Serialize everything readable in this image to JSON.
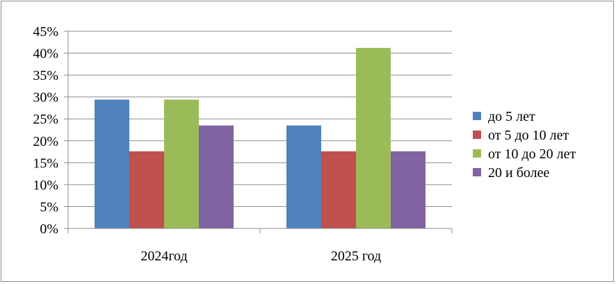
{
  "chart_data": {
    "type": "bar",
    "title": "",
    "xlabel": "",
    "ylabel": "",
    "categories": [
      "2024год",
      "2025 год"
    ],
    "series": [
      {
        "name": "до 5 лет",
        "values": [
          29.4,
          23.5
        ],
        "color": "#4f81bd"
      },
      {
        "name": "от 5 до 10 лет",
        "values": [
          17.6,
          17.6
        ],
        "color": "#c0504d"
      },
      {
        "name": "от 10 до 20 лет",
        "values": [
          29.4,
          41.2
        ],
        "color": "#9bbb59"
      },
      {
        "name": "20 и более",
        "values": [
          23.5,
          17.6
        ],
        "color": "#8064a2"
      }
    ],
    "ylim": [
      0,
      45
    ],
    "ytick_step": 5,
    "ytick_labels": [
      "0%",
      "5%",
      "10%",
      "15%",
      "20%",
      "25%",
      "30%",
      "35%",
      "40%",
      "45%"
    ],
    "grid": true,
    "legend_position": "right"
  }
}
